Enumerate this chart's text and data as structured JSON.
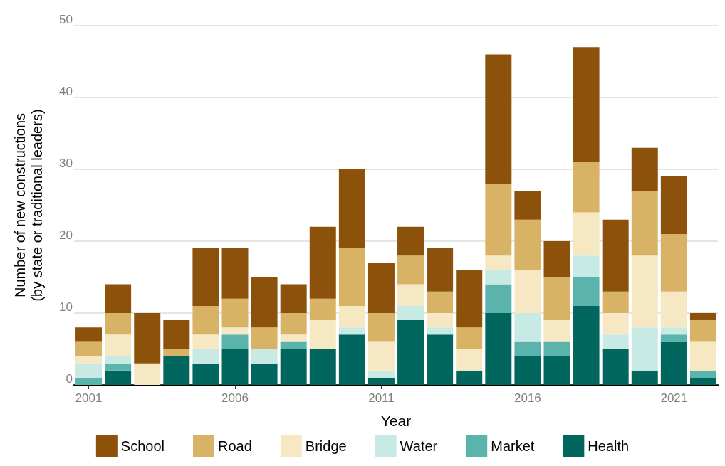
{
  "chart_data": {
    "type": "bar",
    "stacked": true,
    "xlabel": "Year",
    "ylabel": "Number of new constructions\n(by state or traditional leaders)",
    "categories": [
      "2001",
      null,
      null,
      null,
      null,
      "2006",
      null,
      null,
      null,
      null,
      "2011",
      null,
      null,
      null,
      null,
      "2016",
      null,
      null,
      null,
      null,
      "2021",
      null
    ],
    "series": [
      {
        "name": "Health",
        "color": "#01665e",
        "values": [
          0,
          2,
          0,
          4,
          3,
          5,
          3,
          5,
          5,
          7,
          1,
          9,
          7,
          2,
          10,
          4,
          4,
          11,
          5,
          2,
          6,
          1
        ]
      },
      {
        "name": "Market",
        "color": "#5ab4ac",
        "values": [
          1,
          1,
          0,
          0,
          0,
          2,
          0,
          1,
          0,
          0,
          0,
          0,
          0,
          0,
          4,
          2,
          2,
          4,
          0,
          0,
          1,
          1
        ]
      },
      {
        "name": "Water",
        "color": "#c7eae5",
        "values": [
          2,
          1,
          0,
          0,
          2,
          0,
          2,
          0,
          0,
          1,
          1,
          2,
          1,
          0,
          2,
          4,
          0,
          3,
          2,
          6,
          1,
          0
        ]
      },
      {
        "name": "Bridge",
        "color": "#f6e8c3",
        "values": [
          1,
          3,
          3,
          0,
          2,
          1,
          0,
          1,
          4,
          3,
          4,
          3,
          2,
          3,
          2,
          6,
          3,
          6,
          3,
          10,
          5,
          4
        ]
      },
      {
        "name": "Road",
        "color": "#d8b365",
        "values": [
          2,
          3,
          0,
          1,
          4,
          4,
          3,
          3,
          3,
          8,
          4,
          4,
          3,
          3,
          10,
          7,
          6,
          7,
          3,
          9,
          8,
          3
        ]
      },
      {
        "name": "School",
        "color": "#8c510a",
        "values": [
          2,
          4,
          7,
          4,
          8,
          7,
          7,
          4,
          10,
          11,
          7,
          4,
          6,
          8,
          18,
          4,
          5,
          16,
          10,
          6,
          8,
          1
        ]
      }
    ],
    "ylim": [
      0,
      50
    ],
    "yticks": [
      0,
      10,
      20,
      30,
      40,
      50
    ],
    "grid": "y",
    "legend": "bottom"
  }
}
